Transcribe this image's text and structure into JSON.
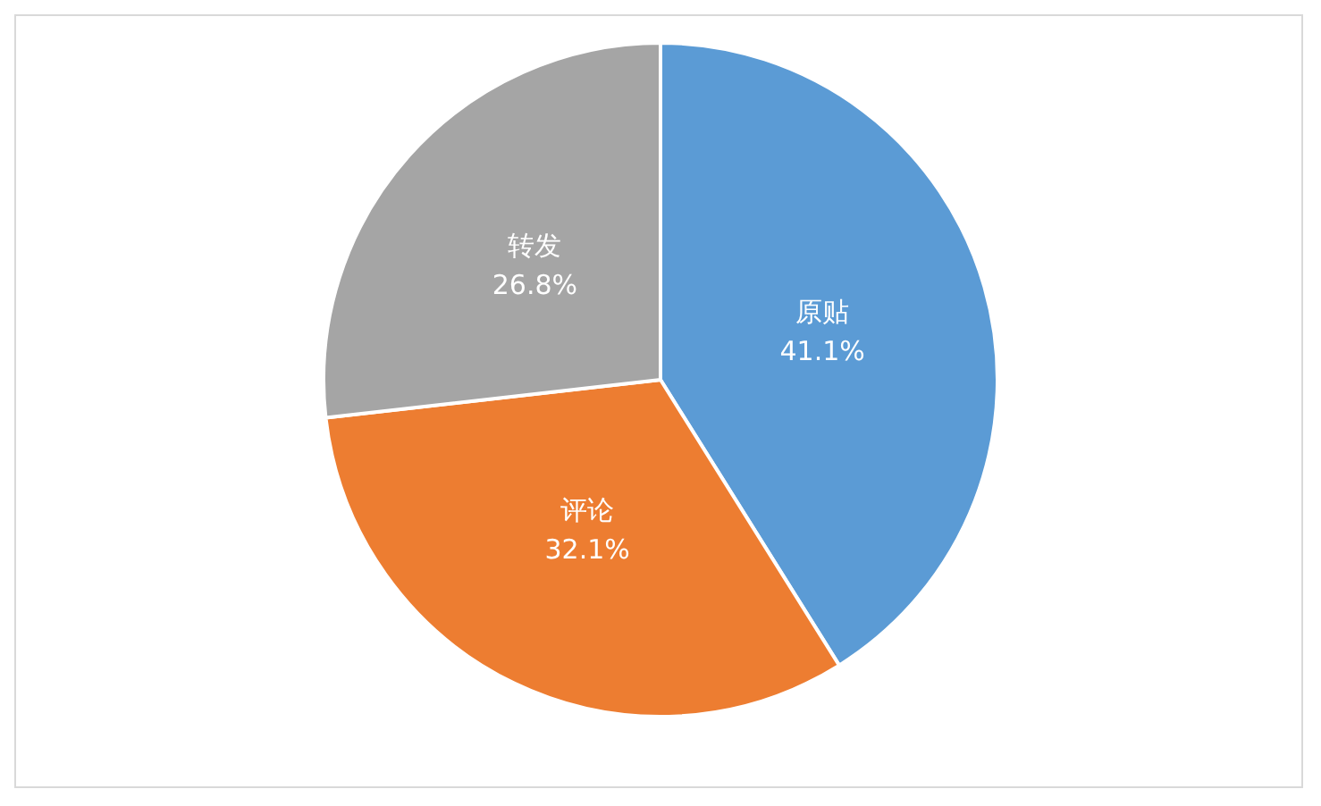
{
  "chart_data": {
    "type": "pie",
    "categories": [
      "原贴",
      "评论",
      "转发"
    ],
    "values": [
      41.1,
      32.1,
      26.8
    ],
    "colors": [
      "#5b9bd5",
      "#ed7d31",
      "#a5a5a5"
    ],
    "value_labels": [
      "41.1%",
      "32.1%",
      "26.8%"
    ],
    "legend": false
  }
}
